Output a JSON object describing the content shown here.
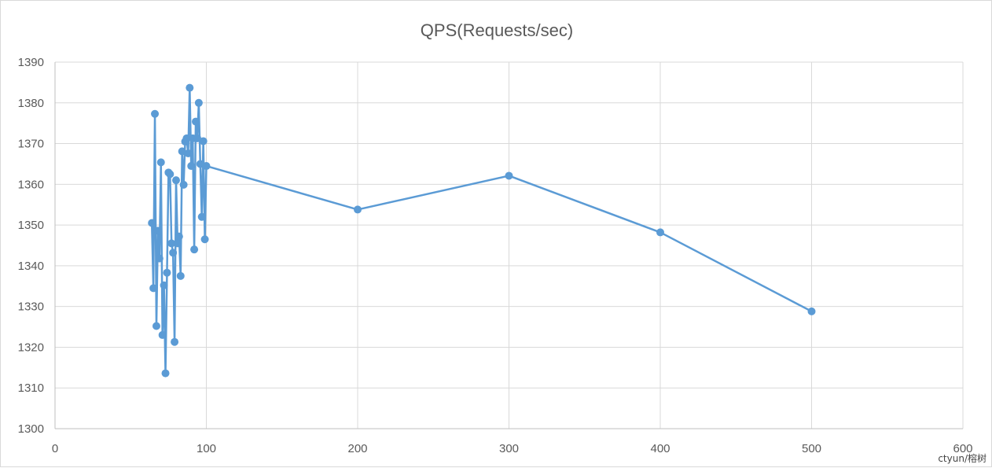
{
  "chart_data": {
    "type": "scatter",
    "title": "QPS(Requests/sec)",
    "xlabel": "",
    "ylabel": "",
    "xlim": [
      0,
      600
    ],
    "ylim": [
      1300,
      1390
    ],
    "x_ticks": [
      0,
      100,
      200,
      300,
      400,
      500,
      600
    ],
    "y_ticks": [
      1300,
      1310,
      1320,
      1330,
      1340,
      1350,
      1360,
      1370,
      1380,
      1390
    ],
    "grid": true,
    "legend": "none",
    "markers": true,
    "connected": true,
    "color": "#5b9bd5",
    "series": [
      {
        "x": [
          64,
          65,
          66,
          67,
          68,
          69,
          70,
          71,
          72,
          73,
          74,
          75,
          76,
          77,
          78,
          79,
          80,
          81,
          82,
          83,
          84,
          85,
          86,
          87,
          88,
          89,
          90,
          91,
          92,
          93,
          94,
          95,
          96,
          97,
          98,
          99,
          100,
          200,
          300,
          400,
          500
        ],
        "y": [
          1350.5,
          1334.5,
          1377.3,
          1325.2,
          1348.6,
          1341.8,
          1365.4,
          1323,
          1335.2,
          1313.6,
          1338.3,
          1362.9,
          1362.5,
          1345.5,
          1343.2,
          1321.3,
          1361,
          1345.5,
          1347.2,
          1337.5,
          1368.1,
          1359.9,
          1370.5,
          1371.3,
          1367.6,
          1383.7,
          1364.5,
          1371.3,
          1344,
          1375.4,
          1371.3,
          1380,
          1365,
          1352,
          1370.6,
          1346.5,
          1364.5,
          1353.8,
          1362.1,
          1348.2,
          1328.8
        ]
      }
    ]
  },
  "watermark": "ctyun/榕树"
}
